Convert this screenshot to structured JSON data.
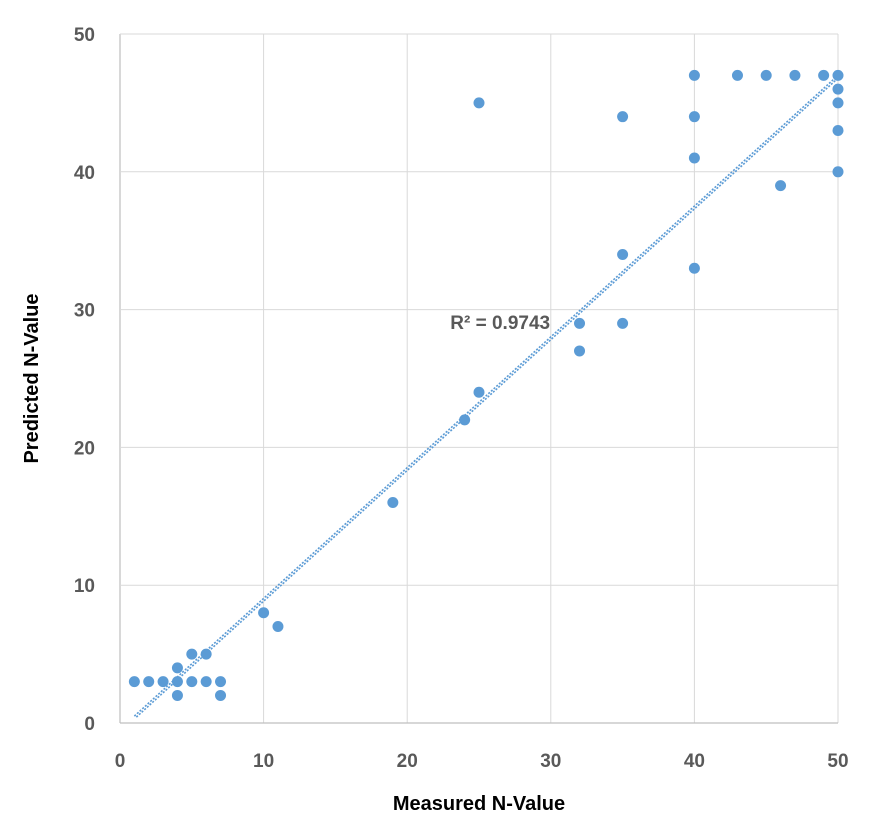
{
  "chart_data": {
    "type": "scatter",
    "title": "",
    "xlabel": "Measured N-Value",
    "ylabel": "Predicted N-Value",
    "xlim": [
      0,
      50
    ],
    "ylim": [
      0,
      50
    ],
    "x_ticks": [
      0,
      10,
      20,
      30,
      40,
      50
    ],
    "y_ticks": [
      0,
      10,
      20,
      30,
      40,
      50
    ],
    "grid": true,
    "legend": "none",
    "series": [
      {
        "name": "N-Value",
        "color": "#5b9bd5",
        "points": [
          [
            1,
            3
          ],
          [
            2,
            3
          ],
          [
            3,
            3
          ],
          [
            4,
            3
          ],
          [
            4,
            4
          ],
          [
            4,
            2
          ],
          [
            5,
            3
          ],
          [
            5,
            5
          ],
          [
            6,
            3
          ],
          [
            6,
            5
          ],
          [
            7,
            3
          ],
          [
            7,
            2
          ],
          [
            10,
            8
          ],
          [
            11,
            7
          ],
          [
            19,
            16
          ],
          [
            24,
            22
          ],
          [
            25,
            24
          ],
          [
            25,
            45
          ],
          [
            32,
            29
          ],
          [
            32,
            27
          ],
          [
            35,
            44
          ],
          [
            35,
            34
          ],
          [
            35,
            29
          ],
          [
            40,
            47
          ],
          [
            40,
            44
          ],
          [
            40,
            41
          ],
          [
            40,
            33
          ],
          [
            43,
            47
          ],
          [
            45,
            47
          ],
          [
            46,
            39
          ],
          [
            47,
            47
          ],
          [
            49,
            47
          ],
          [
            50,
            47
          ],
          [
            50,
            46
          ],
          [
            50,
            45
          ],
          [
            50,
            43
          ],
          [
            50,
            40
          ]
        ]
      }
    ],
    "trendline": {
      "type": "linear",
      "x_range": [
        1,
        50
      ],
      "y_at_x_min": 0.5,
      "y_at_x_max": 47,
      "color": "#5b9bd5",
      "r_squared_label": "R² = 0.9743",
      "label_anchor": [
        23,
        28.6
      ]
    }
  }
}
